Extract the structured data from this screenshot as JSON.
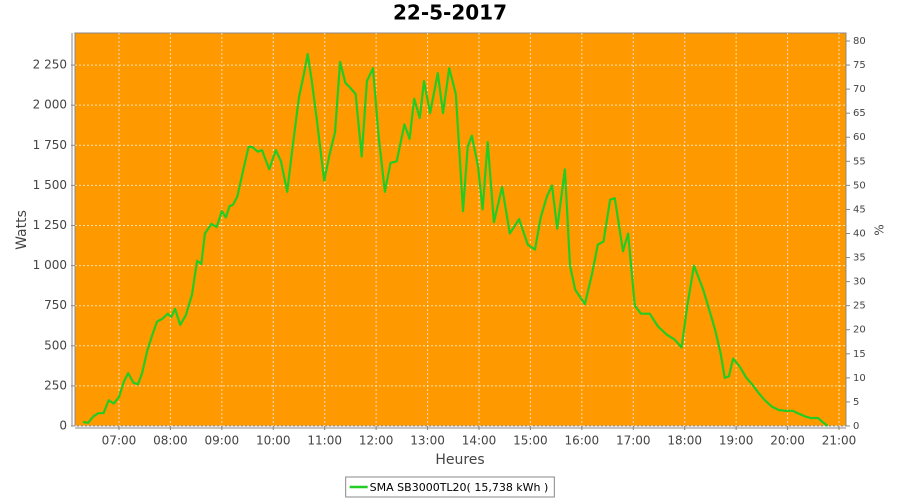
{
  "chart_data": {
    "type": "line",
    "title": "22-5-2017",
    "x_label": "Heures",
    "y_label": "Watts",
    "y2_label": "%",
    "x": [
      6.3,
      6.4,
      6.5,
      6.6,
      6.7,
      6.8,
      6.9,
      7.0,
      7.1,
      7.18,
      7.28,
      7.37,
      7.45,
      7.55,
      7.65,
      7.74,
      7.85,
      7.95,
      8.02,
      8.09,
      8.19,
      8.3,
      8.42,
      8.52,
      8.6,
      8.67,
      8.8,
      8.9,
      9.0,
      9.08,
      9.15,
      9.22,
      9.3,
      9.42,
      9.52,
      9.59,
      9.7,
      9.78,
      9.92,
      10.05,
      10.15,
      10.27,
      10.38,
      10.5,
      10.6,
      10.67,
      10.75,
      10.85,
      10.99,
      11.1,
      11.2,
      11.3,
      11.4,
      11.49,
      11.6,
      11.72,
      11.82,
      11.94,
      12.05,
      12.17,
      12.28,
      12.4,
      12.55,
      12.65,
      12.74,
      12.85,
      12.93,
      13.05,
      13.2,
      13.3,
      13.42,
      13.55,
      13.63,
      13.69,
      13.78,
      13.86,
      13.98,
      14.07,
      14.17,
      14.29,
      14.45,
      14.6,
      14.78,
      14.95,
      15.09,
      15.2,
      15.32,
      15.42,
      15.52,
      15.67,
      15.77,
      15.87,
      16.06,
      16.2,
      16.31,
      16.42,
      16.55,
      16.64,
      16.8,
      16.9,
      17.03,
      17.15,
      17.32,
      17.48,
      17.65,
      17.8,
      17.94,
      18.05,
      18.18,
      18.36,
      18.5,
      18.59,
      18.7,
      18.78,
      18.86,
      18.94,
      19.07,
      19.2,
      19.31,
      19.45,
      19.56,
      19.7,
      19.83,
      19.95,
      20.1,
      20.2,
      20.34,
      20.45,
      20.59,
      20.7,
      20.78
    ],
    "series": [
      {
        "name": "SMA SB3000TL20( 15,738 kWh )",
        "color": "#22cc22",
        "values": [
          25,
          20,
          60,
          80,
          80,
          160,
          140,
          180,
          280,
          330,
          270,
          260,
          330,
          470,
          570,
          650,
          670,
          700,
          680,
          730,
          630,
          690,
          820,
          1030,
          1010,
          1200,
          1260,
          1240,
          1340,
          1300,
          1370,
          1380,
          1430,
          1600,
          1740,
          1740,
          1710,
          1720,
          1600,
          1720,
          1650,
          1460,
          1750,
          2050,
          2200,
          2320,
          2150,
          1900,
          1530,
          1700,
          1830,
          2270,
          2140,
          2110,
          2070,
          1680,
          2150,
          2230,
          1800,
          1460,
          1640,
          1650,
          1880,
          1790,
          2040,
          1920,
          2150,
          1950,
          2200,
          1950,
          2230,
          2070,
          1650,
          1340,
          1740,
          1810,
          1620,
          1350,
          1770,
          1270,
          1490,
          1200,
          1290,
          1130,
          1100,
          1300,
          1430,
          1500,
          1230,
          1600,
          1000,
          850,
          760,
          950,
          1130,
          1150,
          1410,
          1420,
          1090,
          1200,
          750,
          700,
          700,
          620,
          570,
          540,
          490,
          750,
          1000,
          850,
          700,
          600,
          450,
          300,
          310,
          420,
          370,
          300,
          260,
          200,
          160,
          120,
          100,
          95,
          95,
          80,
          60,
          50,
          50,
          20,
          0
        ]
      }
    ],
    "xlim": [
      6.145,
      21.136
    ],
    "xticks": [
      {
        "value": 7,
        "label": "07:00"
      },
      {
        "value": 8,
        "label": "08:00"
      },
      {
        "value": 9,
        "label": "09:00"
      },
      {
        "value": 10,
        "label": "10:00"
      },
      {
        "value": 11,
        "label": "11:00"
      },
      {
        "value": 12,
        "label": "12:00"
      },
      {
        "value": 13,
        "label": "13:00"
      },
      {
        "value": 14,
        "label": "14:00"
      },
      {
        "value": 15,
        "label": "15:00"
      },
      {
        "value": 16,
        "label": "16:00"
      },
      {
        "value": 17,
        "label": "17:00"
      },
      {
        "value": 18,
        "label": "18:00"
      },
      {
        "value": 19,
        "label": "19:00"
      },
      {
        "value": 20,
        "label": "20:00"
      },
      {
        "value": 21,
        "label": "21:00"
      }
    ],
    "ylim": [
      0,
      2450
    ],
    "yticks": [
      0,
      250,
      500,
      750,
      {
        "value": 1000,
        "label": "1 000"
      },
      {
        "value": 1250,
        "label": "1 250"
      },
      {
        "value": 1500,
        "label": "1 500"
      },
      {
        "value": 1750,
        "label": "1 750"
      },
      {
        "value": 2000,
        "label": "2 000"
      },
      {
        "value": 2250,
        "label": "2 250"
      }
    ],
    "y2lim": [
      0,
      81.66
    ],
    "y2ticks": [
      0,
      5,
      10,
      15,
      20,
      25,
      30,
      35,
      40,
      45,
      50,
      55,
      60,
      65,
      70,
      75,
      80
    ],
    "background": "#ff9900",
    "grid": true,
    "legend": "bottom"
  }
}
